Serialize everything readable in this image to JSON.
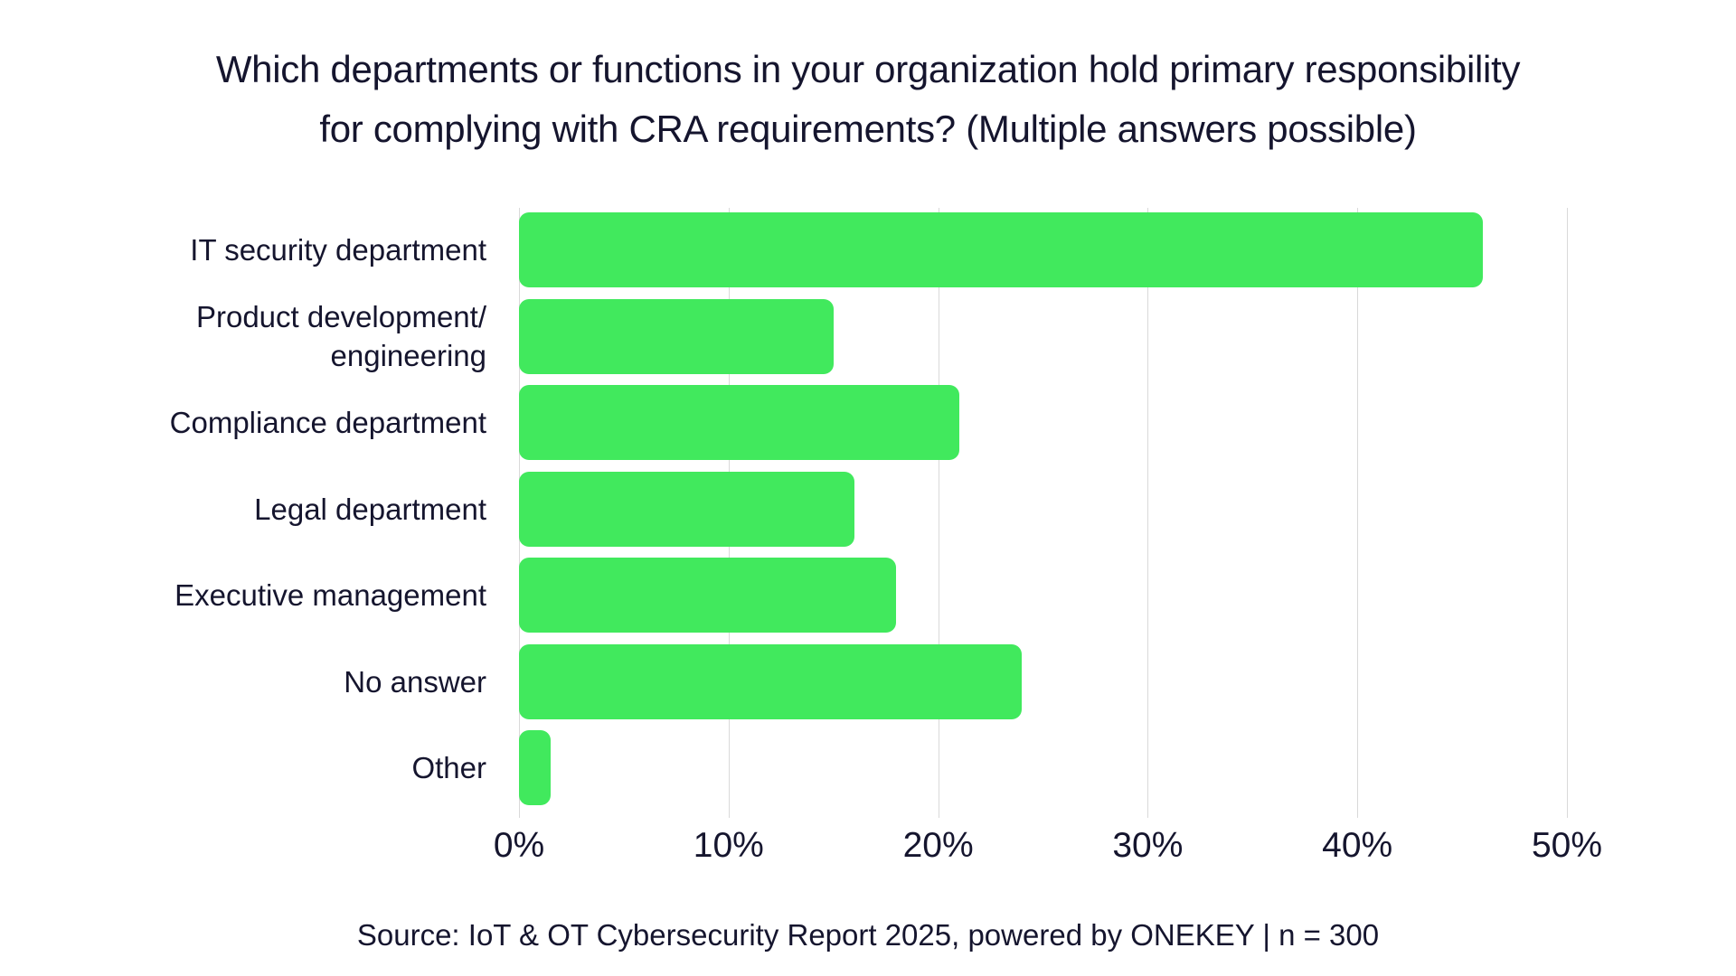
{
  "title_lines": [
    "Which departments or functions in your organization hold primary responsibility",
    "for complying with CRA requirements? (Multiple answers possible)"
  ],
  "source_line": "Source: IoT & OT Cybersecurity Report 2025, powered by ONEKEY | n = 300",
  "chart_data": {
    "type": "bar",
    "orientation": "horizontal",
    "title": "Which departments or functions in your organization hold primary responsibility for complying with CRA requirements? (Multiple answers possible)",
    "categories": [
      "IT security department",
      "Product development/engineering",
      "Compliance department",
      "Legal department",
      "Executive management",
      "No answer",
      "Other"
    ],
    "category_lines": [
      [
        "IT security department"
      ],
      [
        "Product development/",
        "engineering"
      ],
      [
        "Compliance department"
      ],
      [
        "Legal department"
      ],
      [
        "Executive management"
      ],
      [
        "No answer"
      ],
      [
        "Other"
      ]
    ],
    "values": [
      46,
      15,
      21,
      16,
      18,
      24,
      1.5
    ],
    "unit": "%",
    "xlim": [
      0,
      50
    ],
    "xticks": [
      "0%",
      "10%",
      "20%",
      "30%",
      "40%",
      "50%"
    ],
    "xlabel": "",
    "ylabel": "",
    "grid": "vertical",
    "legend": "none",
    "bar_color": "#41e95d",
    "gridline_color": "#d9d9d9",
    "text_color": "#15152e",
    "background_color": "#ffffff",
    "source": "Source: IoT & OT Cybersecurity Report 2025, powered by ONEKEY | n = 300"
  }
}
